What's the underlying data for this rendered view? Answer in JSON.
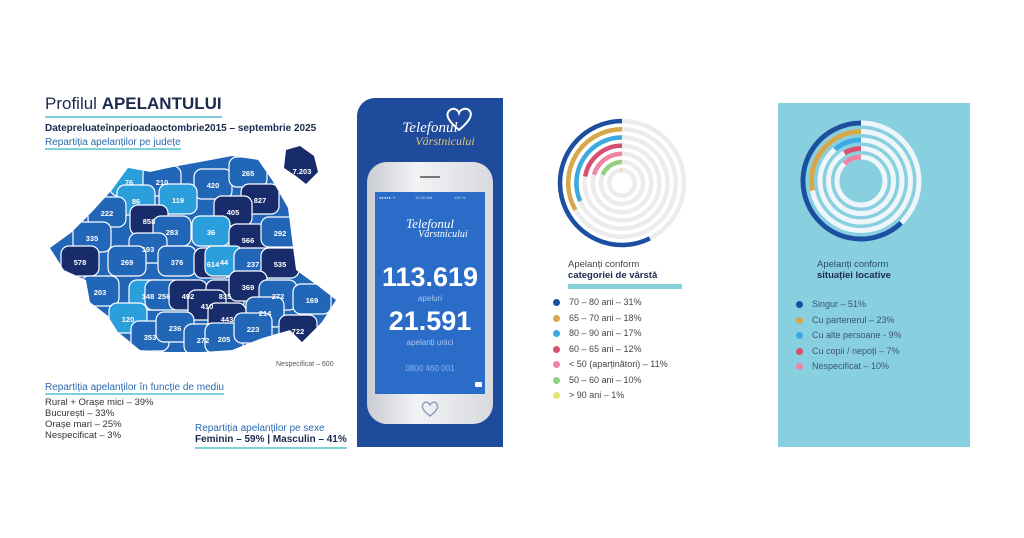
{
  "header": {
    "title_light": "Profilul ",
    "title_bold": "APELANTULUI",
    "subtitle": "Datepreluateînperioadaoctombrie2015 – septembrie 2025",
    "county_title": "Repartiția apelanților pe județe"
  },
  "map": {
    "counties": [
      "7.203",
      "76",
      "210",
      "420",
      "265",
      "86",
      "119",
      "827",
      "222",
      "858",
      "405",
      "283",
      "36",
      "566",
      "292",
      "335",
      "193",
      "578",
      "269",
      "376",
      "614",
      "44",
      "237",
      "535",
      "203",
      "148",
      "256",
      "492",
      "835",
      "369",
      "272",
      "169",
      "410",
      "214",
      "443",
      "120",
      "722",
      "353",
      "236",
      "272",
      "205",
      "223"
    ],
    "levels": [
      3,
      1,
      2,
      2,
      2,
      1,
      1,
      3,
      2,
      3,
      3,
      2,
      1,
      3,
      2,
      2,
      2,
      3,
      2,
      2,
      3,
      1,
      2,
      3,
      2,
      1,
      2,
      3,
      3,
      3,
      2,
      2,
      3,
      2,
      3,
      1,
      3,
      2,
      2,
      2,
      2,
      2
    ],
    "level_colors": {
      "1": "#2b9fdc",
      "2": "#2266b8",
      "3": "#182c6b"
    },
    "unspecified": "Nespecificat – 600"
  },
  "environment": {
    "title": "Repartiția apelanților în funcție de mediu",
    "items": [
      "Rural + Orașe mici – 39%",
      "București – 33%",
      "Orașe mari – 25%",
      "Nespecificat – 3%"
    ]
  },
  "gender": {
    "title": "Repartiția apelanților pe sexe",
    "value": "Feminin – 59% | Masculin – 41%"
  },
  "phone": {
    "logo_line1": "Telefonul",
    "logo_line2": "Vârstnicului",
    "status_time": "12:30 AM",
    "status_battery": "100 %",
    "calls": "113.619",
    "calls_label": "apeluri",
    "unique": "21.591",
    "unique_label": "apelanți unici",
    "hotline": "0800 460 001",
    "icons": [
      "heart-phone-logo",
      "wifi-icon",
      "battery-icon",
      "camera-icon"
    ]
  },
  "chart_data": [
    {
      "type": "radial-bar",
      "title_line1": "Apelanți conform",
      "title_line2": "categoriei de vârstă",
      "series": [
        {
          "name": "70 – 80 ani",
          "value": 31,
          "label": "70 – 80 ani – 31%",
          "color": "#1b50a0"
        },
        {
          "name": "65 – 70 ani",
          "value": 18,
          "label": "65 – 70 ani – 18%",
          "color": "#d6a84a"
        },
        {
          "name": "80 – 90 ani",
          "value": 17,
          "label": "80 – 90 ani – 17%",
          "color": "#3da9e1"
        },
        {
          "name": "60 – 65 ani",
          "value": 12,
          "label": "60 – 65 ani – 12%",
          "color": "#d8506f"
        },
        {
          "name": "< 50 (aparținători)",
          "value": 11,
          "label": "< 50 (aparținători) – 11%",
          "color": "#ee83a2"
        },
        {
          "name": "50 – 60 ani",
          "value": 10,
          "label": "50 – 60 ani – 10%",
          "color": "#94cf82"
        },
        {
          "name": "> 90 ani",
          "value": 1,
          "label": "> 90 ani – 1%",
          "color": "#e5e46d"
        }
      ],
      "track_color": "#ececec"
    },
    {
      "type": "radial-bar",
      "title_line1": "Apelanți conform",
      "title_line2": "situației locative",
      "series": [
        {
          "name": "Singur",
          "value": 51,
          "label": "Singur – 51%",
          "color": "#1b50a0"
        },
        {
          "name": "Cu partenerul",
          "value": 23,
          "label": "Cu partenerul – 23%",
          "color": "#d6a84a"
        },
        {
          "name": "Cu alte persoane",
          "value": 9,
          "label": "Cu alte persoane - 9%",
          "color": "#3da9e1"
        },
        {
          "name": "Cu copii / nepoți",
          "value": 7,
          "label": "Cu copii / nepoți – 7%",
          "color": "#d8506f"
        },
        {
          "name": "Nespecificat",
          "value": 10,
          "label": "Nespecificat – 10%",
          "color": "#ee83a2"
        }
      ],
      "track_color": "#eef6f9"
    }
  ]
}
